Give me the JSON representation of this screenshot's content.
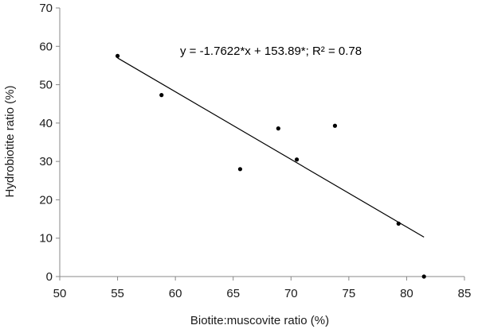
{
  "chart_data": {
    "type": "scatter",
    "title": "",
    "xlabel": "Biotite:muscovite ratio (%)",
    "ylabel": "Hydrobiotite ratio (%)",
    "xlim": [
      50,
      85
    ],
    "ylim": [
      0,
      70
    ],
    "xticks": [
      50,
      55,
      60,
      65,
      70,
      75,
      80,
      85
    ],
    "yticks": [
      0,
      10,
      20,
      30,
      40,
      50,
      60,
      70
    ],
    "grid": false,
    "legend": "none",
    "points": [
      {
        "x": 55.0,
        "y": 57.5
      },
      {
        "x": 58.8,
        "y": 47.3
      },
      {
        "x": 65.6,
        "y": 28.0
      },
      {
        "x": 68.9,
        "y": 38.6
      },
      {
        "x": 70.5,
        "y": 30.5
      },
      {
        "x": 73.8,
        "y": 39.3
      },
      {
        "x": 79.3,
        "y": 13.8
      },
      {
        "x": 81.5,
        "y": 0.0
      }
    ],
    "trendline": {
      "slope": -1.7622,
      "intercept": 153.89,
      "x_range": [
        55.0,
        81.5
      ]
    },
    "annotation": "y = -1.7622*x + 153.89*; R² = 0.78",
    "colors": {
      "points": "#000000",
      "trendline": "#000000",
      "axes": "#888888"
    }
  }
}
